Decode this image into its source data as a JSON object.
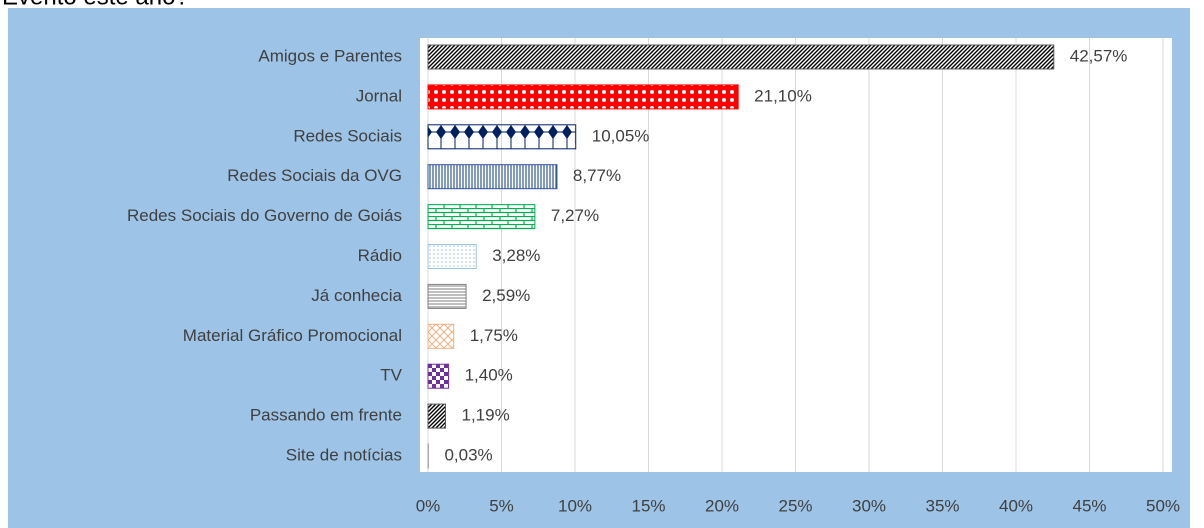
{
  "chart_data": {
    "type": "hbar",
    "title": "Evento este ano?",
    "categories": [
      "Site de notícias",
      "Passando em frente",
      "TV",
      "Material Gráfico Promocional",
      "Já conhecia",
      "Rádio",
      "Redes Sociais do Governo de Goiás",
      "Redes Sociais da OVG",
      "Redes Sociais",
      "Jornal",
      "Amigos e Parentes"
    ],
    "values": [
      0.03,
      1.19,
      1.4,
      1.75,
      2.59,
      3.28,
      7.27,
      8.77,
      10.05,
      21.1,
      42.57
    ],
    "value_labels": [
      "0,03%",
      "1,19%",
      "1,40%",
      "1,75%",
      "2,59%",
      "3,28%",
      "7,27%",
      "8,77%",
      "10,05%",
      "21,10%",
      "42,57%"
    ],
    "colors": [
      "#a6a6a6",
      "#000000",
      "#7030a0",
      "#f4b183",
      "#7f7f7f",
      "#9dc3e6",
      "#00b050",
      "#2f5597",
      "#002060",
      "#ff0000",
      "#000000"
    ],
    "xlim": [
      0,
      50
    ],
    "xticks": [
      {
        "value": 0,
        "label": "0%"
      },
      {
        "value": 5,
        "label": "5%"
      },
      {
        "value": 10,
        "label": "10%"
      },
      {
        "value": 15,
        "label": "15%"
      },
      {
        "value": 20,
        "label": "20%"
      },
      {
        "value": 25,
        "label": "25%"
      },
      {
        "value": 30,
        "label": "30%"
      },
      {
        "value": 35,
        "label": "35%"
      },
      {
        "value": 40,
        "label": "40%"
      },
      {
        "value": 45,
        "label": "45%"
      },
      {
        "value": 50,
        "label": "50%"
      }
    ],
    "grid": true
  }
}
